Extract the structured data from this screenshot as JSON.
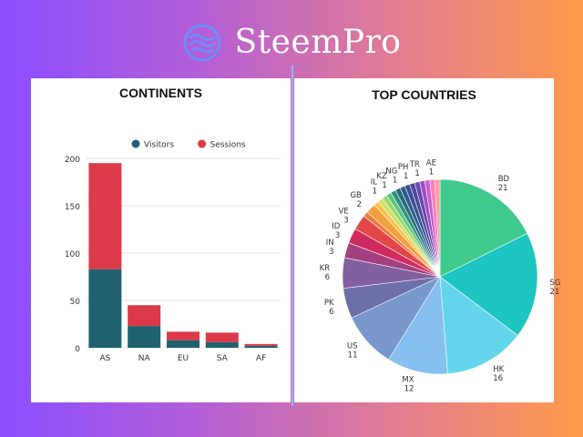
{
  "brand": {
    "name": "SteemPro",
    "logo_icon": "wave-circle-icon"
  },
  "colors": {
    "visitors": "#1f6170",
    "sessions": "#dc3a48"
  },
  "chart_data": [
    {
      "type": "bar",
      "stacked": true,
      "title": "CONTINENTS",
      "categories": [
        "AS",
        "NA",
        "EU",
        "SA",
        "AF"
      ],
      "series": [
        {
          "name": "Visitors",
          "color": "#1f6170",
          "values": [
            83,
            23,
            8,
            6,
            2
          ]
        },
        {
          "name": "Sessions",
          "color": "#dc3a48",
          "values": [
            112,
            22,
            9,
            10,
            2
          ]
        }
      ],
      "yticks": [
        0,
        50,
        100,
        150,
        200
      ],
      "ylim": [
        0,
        200
      ],
      "grid": true,
      "legend": "top"
    },
    {
      "type": "pie",
      "title": "TOP COUNTRIES",
      "slices": [
        {
          "label": "BD",
          "value": 21,
          "color": "#3fc98d"
        },
        {
          "label": "SG",
          "value": 21,
          "color": "#1cc5c0"
        },
        {
          "label": "HK",
          "value": 16,
          "color": "#63d6ee"
        },
        {
          "label": "MX",
          "value": 12,
          "color": "#86bff0"
        },
        {
          "label": "US",
          "value": 11,
          "color": "#7898cc"
        },
        {
          "label": "PK",
          "value": 6,
          "color": "#6c6fa8"
        },
        {
          "label": "KR",
          "value": 6,
          "color": "#825f9e"
        },
        {
          "label": "IN",
          "value": 3,
          "color": "#a23f7e"
        },
        {
          "label": "ID",
          "value": 3,
          "color": "#cf2a5e"
        },
        {
          "label": "VE",
          "value": 3,
          "color": "#e24648"
        },
        {
          "label": "",
          "value": 1,
          "color": "#f07a38"
        },
        {
          "label": "GB",
          "value": 2,
          "color": "#f2a03d"
        },
        {
          "label": "",
          "value": 1,
          "color": "#ffc04a"
        },
        {
          "label": "",
          "value": 1,
          "color": "#cfe06a"
        },
        {
          "label": "IL",
          "value": 1,
          "color": "#9ad86a"
        },
        {
          "label": "",
          "value": 1,
          "color": "#5fc47f"
        },
        {
          "label": "KZ",
          "value": 1,
          "color": "#2f8f84"
        },
        {
          "label": "",
          "value": 1,
          "color": "#2a6b7a"
        },
        {
          "label": "NG",
          "value": 1,
          "color": "#2c5d8f"
        },
        {
          "label": "",
          "value": 1,
          "color": "#394e94"
        },
        {
          "label": "PH",
          "value": 1,
          "color": "#4b4a9e"
        },
        {
          "label": "",
          "value": 1,
          "color": "#6a46a8"
        },
        {
          "label": "TR",
          "value": 1,
          "color": "#9b4fc4"
        },
        {
          "label": "",
          "value": 1,
          "color": "#d25bd0"
        },
        {
          "label": "AE",
          "value": 1,
          "color": "#ff7fb8"
        },
        {
          "label": "",
          "value": 1,
          "color": "#ff9e9e"
        }
      ]
    }
  ]
}
